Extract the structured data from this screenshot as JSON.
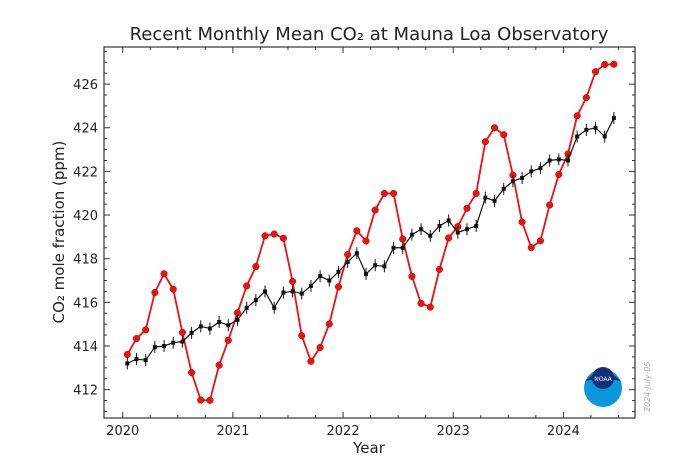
{
  "chart_data": {
    "type": "line",
    "title": "Recent Monthly Mean CO₂ at Mauna Loa Observatory",
    "xlabel": "Year",
    "ylabel": "CO₂ mole fraction (ppm)",
    "xlim": [
      2019.83,
      2024.65
    ],
    "ylim": [
      410.7,
      427.7
    ],
    "xticks": [
      "2020",
      "2021",
      "2022",
      "2023",
      "2024"
    ],
    "yticks": [
      "412",
      "414",
      "416",
      "418",
      "420",
      "422",
      "424",
      "426"
    ],
    "grid": false,
    "start": "2020-01",
    "series": [
      {
        "color": "#ee1111",
        "marker": "circle",
        "values": [
          413.61,
          414.34,
          414.74,
          416.45,
          417.31,
          416.6,
          414.62,
          412.78,
          411.52,
          411.51,
          413.12,
          414.26,
          415.52,
          416.75,
          417.64,
          419.05,
          419.13,
          418.94,
          416.96,
          414.47,
          413.3,
          413.93,
          415.01,
          416.71,
          418.19,
          419.28,
          418.81,
          420.23,
          420.99,
          420.99,
          418.9,
          417.19,
          415.95,
          415.78,
          417.51,
          418.95,
          419.47,
          420.31,
          420.99,
          423.36,
          424.0,
          423.68,
          421.83,
          419.68,
          418.51,
          418.82,
          420.46,
          421.86,
          422.8,
          424.55,
          425.38,
          426.57,
          426.9,
          426.91
        ]
      },
      {
        "color": "#111111",
        "marker": "square",
        "error_bars": true,
        "values": [
          413.2,
          413.4,
          413.35,
          413.95,
          414.0,
          414.15,
          414.2,
          414.6,
          414.9,
          414.8,
          415.1,
          414.95,
          415.2,
          415.75,
          416.1,
          416.5,
          415.75,
          416.45,
          416.5,
          416.4,
          416.75,
          417.2,
          417.0,
          417.4,
          417.85,
          418.25,
          417.3,
          417.7,
          417.65,
          418.5,
          418.5,
          419.1,
          419.35,
          419.05,
          419.5,
          419.75,
          419.2,
          419.35,
          419.5,
          420.8,
          420.65,
          421.2,
          421.55,
          421.7,
          422.0,
          422.15,
          422.5,
          422.55,
          422.5,
          423.6,
          423.9,
          424.0,
          423.6,
          424.45
        ]
      }
    ]
  },
  "logo": {
    "text": "NOAA"
  },
  "datestamp": "2024-July-05"
}
